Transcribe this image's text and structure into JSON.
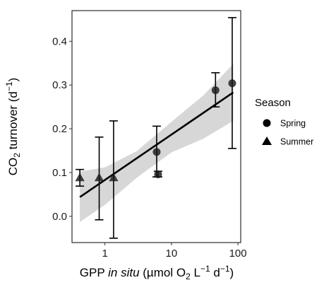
{
  "chart_data": {
    "type": "scatter",
    "xlabel": {
      "prefix": "GPP ",
      "italic": "in situ",
      "unit_open": " (µmol O",
      "unit_sub": "2",
      "unit_mid": " L",
      "unit_sup1": "−1",
      "unit_mid2": " d",
      "unit_sup2": "−1",
      "unit_close": ")"
    },
    "ylabel": {
      "main": "CO",
      "sub": "2",
      "rest": " turnover (d",
      "sup": "−1",
      "close": ")"
    },
    "x_scale": "log",
    "xlim": [
      0.32,
      110
    ],
    "ylim": [
      -0.06,
      0.47
    ],
    "x_ticks": [
      {
        "value": 1,
        "label": "1"
      },
      {
        "value": 10,
        "label": "10"
      },
      {
        "value": 100,
        "label": "100"
      }
    ],
    "y_ticks": [
      {
        "value": 0.0,
        "label": "0.0"
      },
      {
        "value": 0.1,
        "label": "0.1"
      },
      {
        "value": 0.2,
        "label": "0.2"
      },
      {
        "value": 0.3,
        "label": "0.3"
      },
      {
        "value": 0.4,
        "label": "0.4"
      }
    ],
    "legend": {
      "title": "Season",
      "position": "right",
      "entries": [
        {
          "label": "Spring",
          "shape": "circle"
        },
        {
          "label": "Summer",
          "shape": "triangle"
        }
      ]
    },
    "series": [
      {
        "name": "Spring",
        "shape": "circle",
        "points": [
          {
            "x": 6.0,
            "y": 0.147,
            "ymin": 0.09,
            "ymax": 0.206
          },
          {
            "x": 6.3,
            "y": 0.096,
            "ymin": 0.09,
            "ymax": 0.103
          },
          {
            "x": 46,
            "y": 0.288,
            "ymin": 0.25,
            "ymax": 0.328
          },
          {
            "x": 82,
            "y": 0.304,
            "ymin": 0.155,
            "ymax": 0.454
          }
        ]
      },
      {
        "name": "Summer",
        "shape": "triangle",
        "points": [
          {
            "x": 0.42,
            "y": 0.088,
            "ymin": 0.069,
            "ymax": 0.107
          },
          {
            "x": 0.82,
            "y": 0.088,
            "ymin": -0.008,
            "ymax": 0.181
          },
          {
            "x": 1.35,
            "y": 0.088,
            "ymin": -0.05,
            "ymax": 0.218
          }
        ]
      }
    ],
    "fit": {
      "type": "linear-log-x",
      "x_start": 0.42,
      "x_end": 85,
      "y_start": 0.044,
      "y_end": 0.283,
      "band_upper": [
        {
          "x": 0.42,
          "y": 0.102
        },
        {
          "x": 1,
          "y": 0.112
        },
        {
          "x": 3,
          "y": 0.149
        },
        {
          "x": 10,
          "y": 0.216
        },
        {
          "x": 30,
          "y": 0.276
        },
        {
          "x": 85,
          "y": 0.348
        }
      ],
      "band_lower": [
        {
          "x": 0.42,
          "y": -0.013
        },
        {
          "x": 1,
          "y": 0.026
        },
        {
          "x": 3,
          "y": 0.088
        },
        {
          "x": 10,
          "y": 0.146
        },
        {
          "x": 30,
          "y": 0.177
        },
        {
          "x": 85,
          "y": 0.218
        }
      ]
    },
    "colors": {
      "point": "#1a1a1a",
      "point_alpha": 0.82,
      "line": "#000000",
      "band": "#bdbdbd",
      "band_alpha": 0.6
    }
  }
}
